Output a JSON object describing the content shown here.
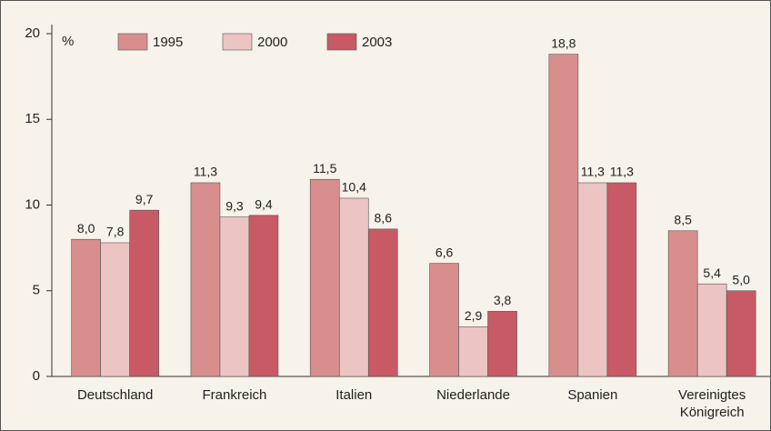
{
  "chart_data": {
    "type": "bar",
    "unit_label": "%",
    "categories": [
      "Deutschland",
      "Frankreich",
      "Italien",
      "Niederlande",
      "Spanien",
      "Vereinigtes Königreich"
    ],
    "series": [
      {
        "name": "1995",
        "color": "#d98e8e",
        "values": [
          8.0,
          11.3,
          11.5,
          6.6,
          18.8,
          8.5
        ],
        "value_labels": [
          "8,0",
          "11,3",
          "11,5",
          "6,6",
          "18,8",
          "8,5"
        ]
      },
      {
        "name": "2000",
        "color": "#ecc4c2",
        "values": [
          7.8,
          9.3,
          10.4,
          2.9,
          11.3,
          5.4
        ],
        "value_labels": [
          "7,8",
          "9,3",
          "10,4",
          "2,9",
          "11,3",
          "5,4"
        ]
      },
      {
        "name": "2003",
        "color": "#c75a64",
        "values": [
          9.7,
          9.4,
          8.6,
          3.8,
          11.3,
          5.0
        ],
        "value_labels": [
          "9,7",
          "9,4",
          "8,6",
          "3,8",
          "11,3",
          "5,0"
        ]
      }
    ],
    "ylim": [
      0,
      20
    ],
    "yticks": [
      0,
      5,
      10,
      15,
      20
    ],
    "grid": false
  }
}
